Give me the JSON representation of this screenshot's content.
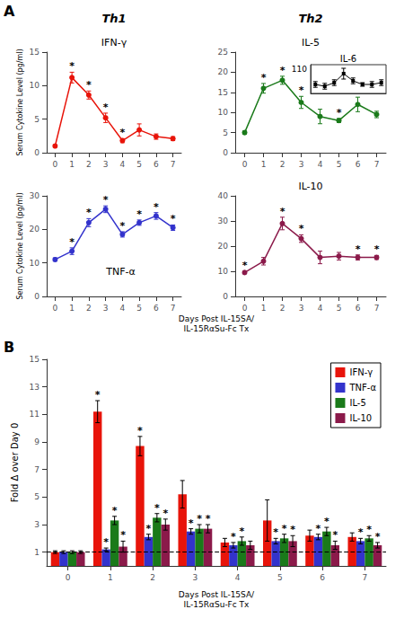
{
  "chart_data": [
    {
      "type": "line",
      "panel": "A",
      "group_label": "Th1",
      "title": "IFN-γ",
      "xlabel": "Days Post IL-15SA/\nIL-15RαSu-Fc Tx",
      "ylabel": "Serum Cytokine Level (pg/ml)",
      "x": [
        0,
        1,
        2,
        3,
        4,
        5,
        6,
        7
      ],
      "values": [
        1.0,
        11.2,
        8.6,
        5.2,
        1.8,
        3.4,
        2.4,
        2.1
      ],
      "errors": [
        0.2,
        0.8,
        0.6,
        0.7,
        0.3,
        0.9,
        0.4,
        0.3
      ],
      "stars": [
        false,
        true,
        true,
        true,
        true,
        false,
        false,
        false
      ],
      "star_label": "*",
      "color": "#E8140A",
      "marker": "circle",
      "xlim": [
        -0.5,
        7.5
      ],
      "xticks": [
        0,
        1,
        2,
        3,
        4,
        5,
        6,
        7
      ],
      "ylim": [
        0,
        15
      ],
      "yticks": [
        0,
        5,
        10,
        15
      ],
      "grid": false
    },
    {
      "type": "line",
      "group_label": "Th2",
      "title": "IL-5",
      "x": [
        0,
        1,
        2,
        3,
        4,
        5,
        6,
        7
      ],
      "values": [
        5.0,
        16.0,
        18.0,
        12.5,
        9.0,
        8.0,
        12.0,
        9.5
      ],
      "errors": [
        0.4,
        1.2,
        1.0,
        1.5,
        1.8,
        0.5,
        1.8,
        0.8
      ],
      "stars": [
        false,
        true,
        true,
        true,
        false,
        true,
        false,
        false
      ],
      "star_label": "*",
      "color": "#1A7A1A",
      "marker": "circle",
      "xlim": [
        -0.5,
        7.5
      ],
      "xticks": [
        0,
        1,
        2,
        3,
        4,
        5,
        6,
        7
      ],
      "ylim": [
        0,
        25
      ],
      "yticks": [
        0,
        5,
        10,
        15,
        20,
        25
      ],
      "grid": false
    },
    {
      "type": "line",
      "title": "IL-6",
      "top_label": "110",
      "x": [
        0,
        1,
        2,
        3,
        4,
        5,
        6,
        7
      ],
      "values": [
        20.5,
        20.0,
        21.0,
        23.5,
        21.5,
        20.5,
        20.5,
        21.0
      ],
      "errors": [
        0.8,
        0.8,
        0.8,
        1.5,
        0.8,
        0.5,
        0.8,
        0.8
      ],
      "color": "#000000",
      "marker": "square",
      "xlim": [
        -0.5,
        7.5
      ],
      "ylim": [
        18,
        26
      ],
      "tick_labels": false,
      "grid": false
    },
    {
      "type": "line",
      "title": "TNF-α",
      "ylabel": "Serum Cytokine Level (pg/ml)",
      "x": [
        0,
        1,
        2,
        3,
        4,
        5,
        6,
        7
      ],
      "values": [
        11.0,
        13.5,
        22.0,
        26.0,
        18.5,
        22.0,
        24.0,
        20.5
      ],
      "errors": [
        0.5,
        1.0,
        1.2,
        1.0,
        0.8,
        0.8,
        1.0,
        0.8
      ],
      "stars": [
        false,
        true,
        true,
        true,
        true,
        true,
        true,
        true
      ],
      "star_label": "*",
      "color": "#3333CC",
      "marker": "circle",
      "xlim": [
        -0.5,
        7.5
      ],
      "xticks": [
        0,
        1,
        2,
        3,
        4,
        5,
        6,
        7
      ],
      "ylim": [
        0,
        30
      ],
      "yticks": [
        0,
        10,
        20,
        30
      ],
      "grid": false
    },
    {
      "type": "line",
      "title": "IL-10",
      "x": [
        0,
        1,
        2,
        3,
        4,
        5,
        6,
        7
      ],
      "values": [
        9.5,
        14.0,
        29.0,
        23.0,
        15.5,
        16.0,
        15.5,
        15.5
      ],
      "errors": [
        0.5,
        1.5,
        2.5,
        1.5,
        2.5,
        1.5,
        1.0,
        0.8
      ],
      "stars": [
        true,
        false,
        true,
        true,
        false,
        false,
        true,
        true
      ],
      "star_label": "*",
      "color": "#8B1A4A",
      "marker": "circle",
      "xlim": [
        -0.5,
        7.5
      ],
      "xticks": [
        0,
        1,
        2,
        3,
        4,
        5,
        6,
        7
      ],
      "ylim": [
        0,
        40
      ],
      "yticks": [
        0,
        10,
        20,
        30,
        40
      ],
      "grid": false
    },
    {
      "type": "bar",
      "panel": "B",
      "xlabel": "Days Post IL-15SA/\nIL-15RαSu-Fc Tx",
      "ylabel": "Fold Δ over Day 0",
      "categories": [
        0,
        1,
        2,
        3,
        4,
        5,
        6,
        7
      ],
      "series": [
        {
          "name": "IFN-γ",
          "color": "#E8140A",
          "values": [
            1.0,
            11.2,
            8.7,
            5.2,
            1.7,
            3.3,
            2.2,
            2.1
          ],
          "errors": [
            0.1,
            0.8,
            0.7,
            1.0,
            0.3,
            1.5,
            0.4,
            0.3
          ],
          "stars": [
            false,
            true,
            true,
            false,
            false,
            false,
            false,
            false
          ]
        },
        {
          "name": "TNF-α",
          "color": "#3333CC",
          "values": [
            1.0,
            1.2,
            2.1,
            2.5,
            1.5,
            1.8,
            2.1,
            1.8
          ],
          "errors": [
            0.1,
            0.1,
            0.2,
            0.2,
            0.2,
            0.2,
            0.2,
            0.2
          ],
          "stars": [
            false,
            true,
            true,
            true,
            true,
            true,
            true,
            true
          ]
        },
        {
          "name": "IL-5",
          "color": "#1A7A1A",
          "values": [
            1.0,
            3.3,
            3.5,
            2.7,
            1.8,
            2.0,
            2.5,
            2.0
          ],
          "errors": [
            0.1,
            0.3,
            0.3,
            0.3,
            0.3,
            0.3,
            0.3,
            0.2
          ],
          "stars": [
            false,
            true,
            true,
            true,
            true,
            true,
            true,
            true
          ]
        },
        {
          "name": "IL-10",
          "color": "#8B1A4A",
          "values": [
            1.0,
            1.4,
            3.0,
            2.7,
            1.5,
            1.8,
            1.5,
            1.5
          ],
          "errors": [
            0.1,
            0.4,
            0.4,
            0.3,
            0.3,
            0.4,
            0.3,
            0.2
          ],
          "stars": [
            false,
            true,
            true,
            true,
            false,
            true,
            true,
            true
          ]
        }
      ],
      "star_label": "*",
      "ylim": [
        0,
        15
      ],
      "yticks": [
        1,
        3,
        5,
        7,
        9,
        11,
        13,
        15
      ],
      "reference_line": 1,
      "legend": "upper right",
      "grid": false
    }
  ]
}
